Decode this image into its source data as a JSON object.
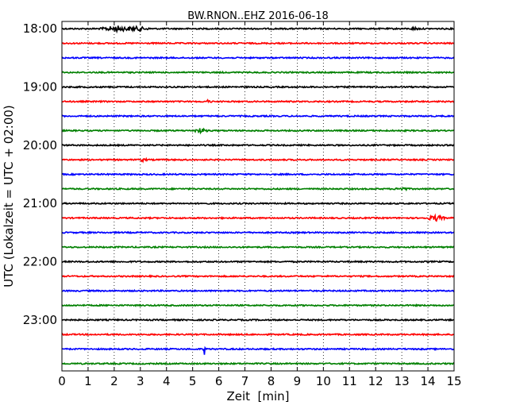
{
  "chart_data": {
    "type": "line",
    "title": "BW.RNON..EHZ 2016-06-18",
    "xlabel": "Zeit  [min]",
    "ylabel": "UTC (Lokalzeit = UTC + 02:00)",
    "xlim": [
      0,
      15
    ],
    "ylim_rows": [
      -0.5,
      23.5
    ],
    "x_ticks": [
      "0",
      "1",
      "2",
      "3",
      "4",
      "5",
      "6",
      "7",
      "8",
      "9",
      "10",
      "11",
      "12",
      "13",
      "14",
      "15"
    ],
    "y_ticks": [
      {
        "label": "18:00",
        "row": 0
      },
      {
        "label": "19:00",
        "row": 4
      },
      {
        "label": "20:00",
        "row": 8
      },
      {
        "label": "21:00",
        "row": 12
      },
      {
        "label": "22:00",
        "row": 16
      },
      {
        "label": "23:00",
        "row": 20
      }
    ],
    "grid": "vertical dotted",
    "trace_minutes_per_row": 15,
    "color_cycle": [
      "#000000",
      "#ff0000",
      "#0000ff",
      "#008000"
    ],
    "series": [
      {
        "start": "18:00",
        "events": [
          {
            "t": 2.1,
            "amp": 0.18,
            "width": 0.7
          },
          {
            "t": 2.9,
            "amp": 0.12,
            "width": 0.5
          },
          {
            "t": 13.5,
            "amp": 0.08,
            "width": 0.2
          }
        ]
      },
      {
        "start": "18:15",
        "events": []
      },
      {
        "start": "18:30",
        "events": []
      },
      {
        "start": "18:45",
        "events": []
      },
      {
        "start": "19:00",
        "events": []
      },
      {
        "start": "19:15",
        "events": [
          {
            "t": 5.6,
            "amp": 0.09,
            "width": 0.15
          }
        ]
      },
      {
        "start": "19:30",
        "events": []
      },
      {
        "start": "19:45",
        "events": [
          {
            "t": 5.3,
            "amp": 0.14,
            "width": 0.3
          }
        ]
      },
      {
        "start": "20:00",
        "events": []
      },
      {
        "start": "20:15",
        "events": [
          {
            "t": 3.1,
            "amp": 0.08,
            "width": 0.2
          }
        ]
      },
      {
        "start": "20:30",
        "events": []
      },
      {
        "start": "20:45",
        "events": [
          {
            "t": 13.0,
            "amp": 0.09,
            "width": 0.3
          }
        ]
      },
      {
        "start": "21:00",
        "events": []
      },
      {
        "start": "21:15",
        "events": [
          {
            "t": 14.3,
            "amp": 0.18,
            "width": 0.4
          }
        ]
      },
      {
        "start": "21:30",
        "events": []
      },
      {
        "start": "21:45",
        "events": []
      },
      {
        "start": "22:00",
        "events": []
      },
      {
        "start": "22:15",
        "events": []
      },
      {
        "start": "22:30",
        "events": []
      },
      {
        "start": "22:45",
        "events": []
      },
      {
        "start": "23:00",
        "events": [
          {
            "t": 0.15,
            "amp": 0.12,
            "width": 0.1
          }
        ]
      },
      {
        "start": "23:15",
        "events": []
      },
      {
        "start": "23:30",
        "events": [
          {
            "t": 5.45,
            "amp": 0.35,
            "width": 0.06
          }
        ]
      },
      {
        "start": "23:45",
        "events": []
      }
    ]
  }
}
